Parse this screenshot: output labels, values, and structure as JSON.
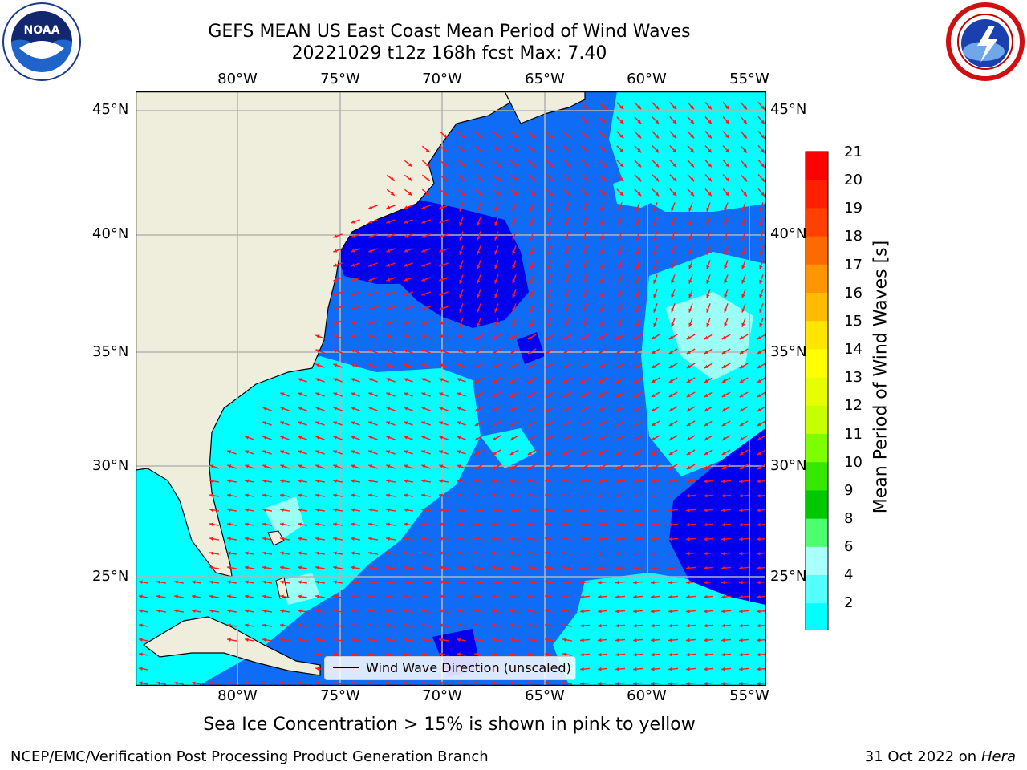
{
  "title": {
    "line1": "GEFS MEAN US East Coast Mean Period of Wind Waves",
    "line2": "20221029 t12z 168h fcst   Max: 7.40"
  },
  "map": {
    "lon_ticks": [
      "80°W",
      "75°W",
      "70°W",
      "65°W",
      "60°W",
      "55°W"
    ],
    "lat_ticks": [
      "45°N",
      "40°N",
      "35°N",
      "30°N",
      "25°N"
    ],
    "extent": {
      "lon_min": -85,
      "lon_max": -54.5,
      "lat_min": 20.5,
      "lat_max": 45.8
    },
    "land_color": "#efeddc",
    "gridline_color": "#b4b4b4",
    "arrow_color": "#ff1a1a",
    "region_colors": {
      "2-4": "#0e6cf7",
      "4-6": "#00ffff",
      "6-8": "#55ffff",
      "0-2": "#0000ee"
    }
  },
  "legend": {
    "label": "Wind Wave Direction (unscaled)"
  },
  "colorbar": {
    "label": "Mean Period of Wind Waves [s]",
    "ticks": [
      "21",
      "20",
      "19",
      "18",
      "17",
      "16",
      "15",
      "14",
      "13",
      "12",
      "11",
      "10",
      "9",
      "8",
      "6",
      "4",
      "2"
    ],
    "colors": [
      "#ff0000",
      "#ff2000",
      "#ff4000",
      "#ff6a00",
      "#ff9500",
      "#ffbb00",
      "#ffe600",
      "#ffff00",
      "#e6ff00",
      "#c8ff00",
      "#7dff00",
      "#36e800",
      "#00c800",
      "#4dff6e",
      "#aaffff",
      "#55ffff",
      "#00ffff",
      "#1090ff"
    ]
  },
  "footer": {
    "note": "Sea Ice Concentration > 15% is shown in pink to yellow",
    "left": "NCEP/EMC/Verification Post Processing Product Generation Branch",
    "right_date": "31 Oct 2022 on ",
    "right_host": "Hera"
  },
  "logos": {
    "left": "NOAA",
    "right": "NATIONAL WEATHER SERVICE"
  }
}
